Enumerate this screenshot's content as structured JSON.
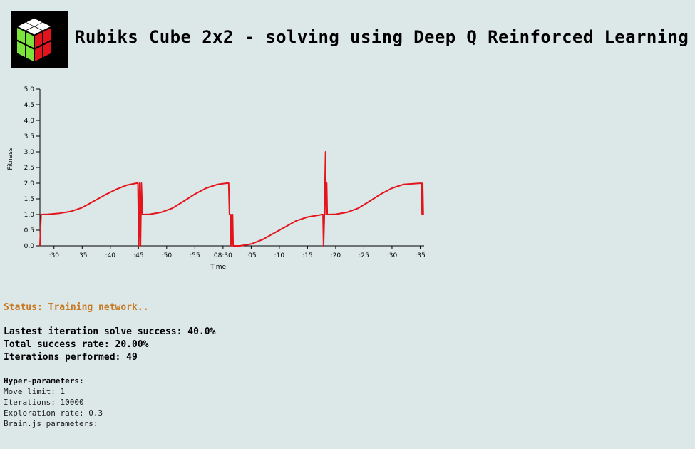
{
  "header": {
    "title": "Rubiks Cube 2x2 - solving using Deep Q Reinforced Learning",
    "logo_icon": "rubiks-cube-icon"
  },
  "colors": {
    "background": "#dce7e8",
    "line": "#e3141c",
    "status": "#c87a22",
    "cube_top": "#ffffff",
    "cube_left": "#7be33a",
    "cube_right": "#e3141c"
  },
  "status": {
    "text": "Status: Training network.."
  },
  "stats": {
    "latest": "Lastest iteration solve success: 40.0%",
    "total": "Total success rate: 20.00%",
    "iterations": "Iterations performed: 49"
  },
  "hyper": {
    "title": "Hyper-parameters:",
    "move_limit": "Move limit: 1",
    "iterations": "Iterations: 10000",
    "exploration": "Exploration rate: 0.3",
    "brain": "Brain.js parameters:"
  },
  "chart_data": {
    "type": "line",
    "xlabel": "Time",
    "ylabel": "Fitness",
    "ylim": [
      0,
      5
    ],
    "yticks": [
      "0.0",
      "0.5",
      "1.0",
      "1.5",
      "2.0",
      "2.5",
      "3.0",
      "3.5",
      "4.0",
      "4.5",
      "5.0"
    ],
    "xticks": [
      ":30",
      ":35",
      ":40",
      ":45",
      ":50",
      ":55",
      "08:30",
      ":05",
      ":10",
      ":15",
      ":20",
      ":25",
      ":30",
      ":35"
    ],
    "xlim": [
      27.5,
      95.7
    ],
    "grid": false,
    "legend": "none",
    "series": [
      {
        "points": [
          [
            27.5,
            0.0
          ],
          [
            27.7,
            1.0
          ],
          [
            29,
            1.01
          ],
          [
            31,
            1.04
          ],
          [
            33,
            1.1
          ],
          [
            35,
            1.22
          ],
          [
            37,
            1.42
          ],
          [
            39,
            1.62
          ],
          [
            41,
            1.8
          ],
          [
            43,
            1.94
          ],
          [
            44.7,
            2.0
          ],
          [
            44.9,
            2.0
          ],
          [
            45.05,
            0.0
          ],
          [
            45.2,
            2.0
          ],
          [
            45.35,
            0.0
          ],
          [
            45.5,
            2.0
          ],
          [
            45.7,
            1.0
          ],
          [
            47,
            1.01
          ],
          [
            49,
            1.07
          ],
          [
            51,
            1.2
          ],
          [
            53,
            1.42
          ],
          [
            55,
            1.65
          ],
          [
            57,
            1.84
          ],
          [
            59,
            1.96
          ],
          [
            60.7,
            2.0
          ],
          [
            61.0,
            2.0
          ],
          [
            61.15,
            1.0
          ],
          [
            61.3,
            1.0
          ],
          [
            61.4,
            0.0
          ],
          [
            61.55,
            1.0
          ],
          [
            61.7,
            1.0
          ],
          [
            61.8,
            0.0
          ],
          [
            63,
            0.0
          ],
          [
            65,
            0.06
          ],
          [
            67,
            0.2
          ],
          [
            69,
            0.4
          ],
          [
            71,
            0.6
          ],
          [
            73,
            0.8
          ],
          [
            75,
            0.92
          ],
          [
            77,
            0.98
          ],
          [
            77.6,
            1.0
          ],
          [
            77.75,
            1.0
          ],
          [
            77.85,
            0.0
          ],
          [
            78.0,
            1.0
          ],
          [
            78.1,
            2.0
          ],
          [
            78.2,
            3.0
          ],
          [
            78.3,
            1.0
          ],
          [
            78.4,
            2.0
          ],
          [
            78.5,
            1.0
          ],
          [
            80,
            1.01
          ],
          [
            82,
            1.07
          ],
          [
            84,
            1.2
          ],
          [
            86,
            1.42
          ],
          [
            88,
            1.65
          ],
          [
            90,
            1.84
          ],
          [
            92,
            1.96
          ],
          [
            95.2,
            2.0
          ],
          [
            95.35,
            1.0
          ],
          [
            95.45,
            2.0
          ],
          [
            95.55,
            1.0
          ]
        ]
      }
    ]
  }
}
